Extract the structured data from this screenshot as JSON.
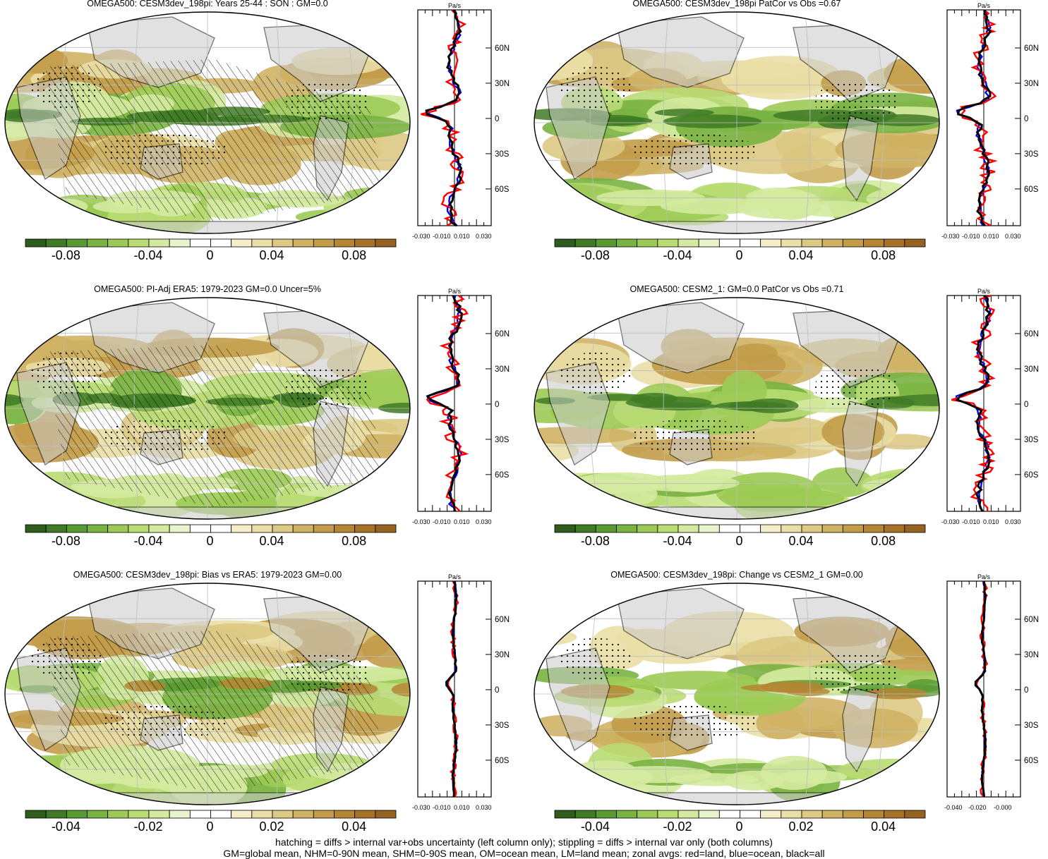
{
  "panels": [
    {
      "title": "OMEGA500: CESM3dev_198pi: Years 25-44 : SON : GM=0.0",
      "colorbar_labels": [
        "-0.08",
        "-0.04",
        "0",
        "0.04",
        "0.08"
      ],
      "profile_unit": "Pa/s",
      "profile_yticks": [
        "60N",
        "30N",
        "0",
        "30S",
        "60S"
      ],
      "profile_xticks": [
        "-0.030",
        "-0.010",
        "0.010",
        "0.030"
      ],
      "hatching": true,
      "stippling": true
    },
    {
      "title": "OMEGA500: CESM3dev_198pi PatCor vs Obs =0.67",
      "colorbar_labels": [
        "-0.08",
        "-0.04",
        "0",
        "0.04",
        "0.08"
      ],
      "profile_unit": "Pa/s",
      "profile_yticks": [
        "60N",
        "30N",
        "0",
        "30S",
        "60S"
      ],
      "profile_xticks": [
        "-0.030",
        "-0.010",
        "0.010",
        "0.030"
      ],
      "hatching": false,
      "stippling": true
    },
    {
      "title": "OMEGA500: PI-Adj ERA5: 1979-2023 GM=0.0 Uncer=5%",
      "colorbar_labels": [
        "-0.08",
        "-0.04",
        "0",
        "0.04",
        "0.08"
      ],
      "profile_unit": "Pa/s",
      "profile_yticks": [
        "60N",
        "30N",
        "0",
        "30S",
        "60S"
      ],
      "profile_xticks": [
        "-0.030",
        "-0.010",
        "0.010",
        "0.030"
      ],
      "hatching": true,
      "stippling": true
    },
    {
      "title": "OMEGA500: CESM2_1: GM=0.0 PatCor vs Obs =0.71",
      "colorbar_labels": [
        "-0.08",
        "-0.04",
        "0",
        "0.04",
        "0.08"
      ],
      "profile_unit": "Pa/s",
      "profile_yticks": [
        "60N",
        "30N",
        "0",
        "30S",
        "60S"
      ],
      "profile_xticks": [
        "-0.030",
        "-0.010",
        "0.010",
        "0.030"
      ],
      "hatching": false,
      "stippling": true
    },
    {
      "title": "OMEGA500: CESM3dev_198pi: Bias vs ERA5: 1979-2023  GM=0.00",
      "colorbar_labels": [
        "-0.04",
        "-0.02",
        "0",
        "0.02",
        "0.04"
      ],
      "profile_unit": "Pa/s",
      "profile_yticks": [
        "60N",
        "30N",
        "0",
        "30S",
        "60S"
      ],
      "profile_xticks": [
        "-0.030",
        "-0.010",
        "0.010",
        "0.030"
      ],
      "hatching": true,
      "stippling": true
    },
    {
      "title": "OMEGA500: CESM3dev_198pi: Change vs CESM2_1 GM=0.00",
      "colorbar_labels": [
        "-0.04",
        "-0.02",
        "0",
        "0.02",
        "0.04"
      ],
      "profile_unit": "Pa/s",
      "profile_yticks": [
        "60N",
        "30N",
        "0",
        "30S",
        "60S"
      ],
      "profile_xticks": [
        "-0.040",
        "-0.020",
        "-0.000"
      ],
      "hatching": false,
      "stippling": true
    }
  ],
  "colorbar_colors": [
    "#2e5c1c",
    "#3f7a26",
    "#5a9a32",
    "#79b341",
    "#9ccb55",
    "#b9dc73",
    "#d4eaa0",
    "#e8f4cc",
    "#ffffff",
    "#ffffff",
    "#f5eecb",
    "#eadfa6",
    "#dcc983",
    "#cfb364",
    "#c29c49",
    "#b48634",
    "#a67228",
    "#96621f"
  ],
  "legend_colors": {
    "land": "#ff0000",
    "ocean": "#0000ff",
    "all": "#000000"
  },
  "land_mask_color": "#c8c8c8",
  "footer": {
    "line1": "hatching = diffs > internal var+obs uncertainty (left column only); stippling = diffs > internal var only (both columns)",
    "line2": "GM=global mean, NHM=0-90N mean, SHM=0-90S mean, OM=ocean mean, LM=land mean; zonal avgs: red=land, blue=ocean, black=all"
  }
}
